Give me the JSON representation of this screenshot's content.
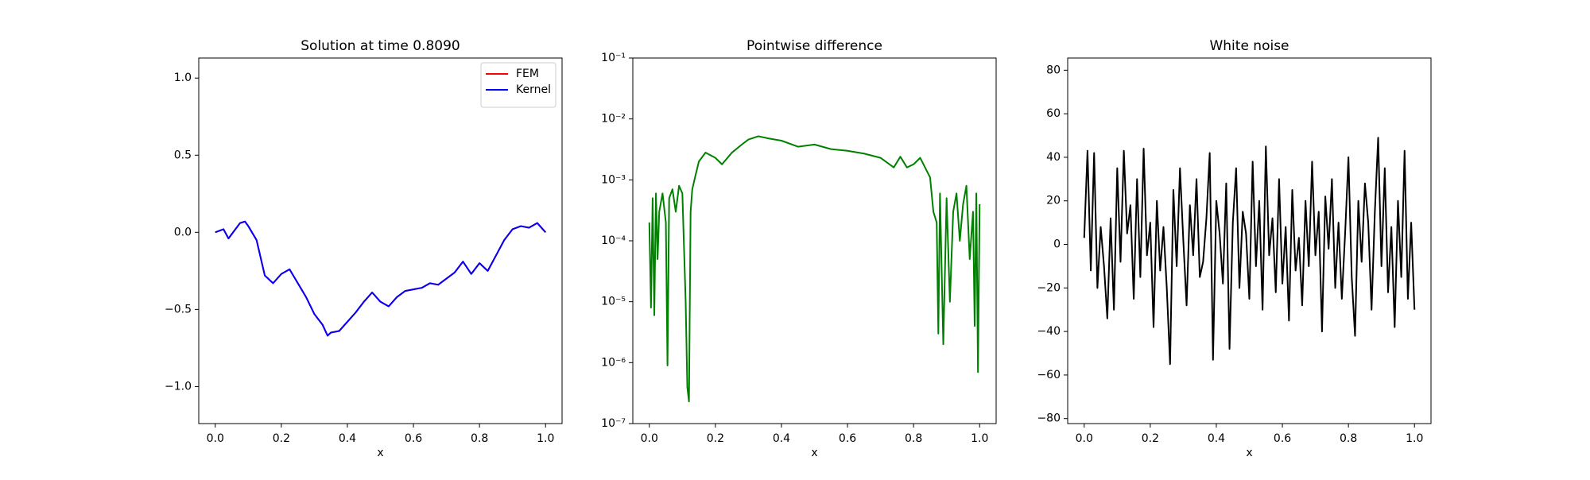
{
  "chart_data": [
    {
      "type": "line",
      "title": "Solution at time 0.8090",
      "xlabel": "x",
      "x": [
        0,
        0.025,
        0.04,
        0.075,
        0.09,
        0.1,
        0.125,
        0.15,
        0.175,
        0.2,
        0.225,
        0.25,
        0.275,
        0.3,
        0.325,
        0.34,
        0.35,
        0.375,
        0.4,
        0.425,
        0.45,
        0.475,
        0.5,
        0.525,
        0.55,
        0.575,
        0.6,
        0.625,
        0.65,
        0.675,
        0.7,
        0.725,
        0.75,
        0.775,
        0.8,
        0.825,
        0.85,
        0.875,
        0.9,
        0.925,
        0.95,
        0.975,
        1.0
      ],
      "series": [
        {
          "name": "FEM",
          "color": "#ff0000",
          "values": [
            0,
            0.02,
            -0.04,
            0.06,
            0.07,
            0.04,
            -0.05,
            -0.28,
            -0.33,
            -0.27,
            -0.24,
            -0.33,
            -0.42,
            -0.53,
            -0.6,
            -0.67,
            -0.65,
            -0.64,
            -0.58,
            -0.52,
            -0.45,
            -0.39,
            -0.45,
            -0.48,
            -0.42,
            -0.38,
            -0.37,
            -0.36,
            -0.33,
            -0.34,
            -0.3,
            -0.26,
            -0.19,
            -0.27,
            -0.2,
            -0.25,
            -0.15,
            -0.05,
            0.02,
            0.04,
            0.03,
            0.06,
            0
          ]
        },
        {
          "name": "Kernel",
          "color": "#0000ff",
          "values": [
            0,
            0.02,
            -0.04,
            0.06,
            0.07,
            0.04,
            -0.05,
            -0.28,
            -0.33,
            -0.27,
            -0.24,
            -0.33,
            -0.42,
            -0.53,
            -0.6,
            -0.67,
            -0.65,
            -0.64,
            -0.58,
            -0.52,
            -0.45,
            -0.39,
            -0.45,
            -0.48,
            -0.42,
            -0.38,
            -0.37,
            -0.36,
            -0.33,
            -0.34,
            -0.3,
            -0.26,
            -0.19,
            -0.27,
            -0.2,
            -0.25,
            -0.15,
            -0.05,
            0.02,
            0.04,
            0.03,
            0.06,
            0
          ]
        }
      ],
      "xlim": [
        -0.05,
        1.05
      ],
      "xticks": [
        {
          "value": 0,
          "label": "0.0"
        },
        0.2,
        0.4,
        0.6,
        0.8,
        {
          "value": 1,
          "label": "1.0"
        }
      ],
      "ylim": [
        -1.24,
        1.13
      ],
      "yticks": [
        {
          "value": -1,
          "label": "−1.0"
        },
        {
          "value": -0.5,
          "label": "−0.5"
        },
        {
          "value": 0,
          "label": "0.0"
        },
        0.5,
        {
          "value": 1,
          "label": "1.0"
        }
      ],
      "legend": "upper right"
    },
    {
      "type": "line",
      "title": "Pointwise difference",
      "xlabel": "x",
      "yscale": "log",
      "x": [
        0,
        0.005,
        0.01,
        0.015,
        0.02,
        0.025,
        0.03,
        0.04,
        0.05,
        0.055,
        0.06,
        0.07,
        0.08,
        0.09,
        0.1,
        0.11,
        0.115,
        0.12,
        0.125,
        0.13,
        0.14,
        0.15,
        0.17,
        0.2,
        0.22,
        0.25,
        0.28,
        0.3,
        0.33,
        0.36,
        0.4,
        0.45,
        0.5,
        0.55,
        0.6,
        0.65,
        0.7,
        0.74,
        0.76,
        0.78,
        0.8,
        0.82,
        0.85,
        0.86,
        0.87,
        0.875,
        0.88,
        0.89,
        0.9,
        0.91,
        0.92,
        0.93,
        0.94,
        0.95,
        0.96,
        0.97,
        0.98,
        0.985,
        0.99,
        0.995,
        1.0
      ],
      "series": [
        {
          "color": "#008000",
          "values": [
            0.0002,
            8e-06,
            0.0005,
            6e-06,
            0.0006,
            5e-05,
            0.0003,
            0.0006,
            0.0002,
            9e-07,
            0.0005,
            0.0007,
            0.0003,
            0.0008,
            0.0006,
            1e-05,
            4e-07,
            2.3e-07,
            0.0003,
            0.0007,
            0.0012,
            0.002,
            0.0028,
            0.0023,
            0.0018,
            0.0028,
            0.0038,
            0.0046,
            0.0052,
            0.0048,
            0.0044,
            0.0035,
            0.0038,
            0.0032,
            0.003,
            0.0027,
            0.0023,
            0.0016,
            0.0024,
            0.0016,
            0.0018,
            0.0023,
            0.0011,
            0.0003,
            0.0002,
            3e-06,
            0.0006,
            2e-06,
            0.0005,
            1e-05,
            0.0003,
            0.0006,
            0.0001,
            0.0004,
            0.0008,
            5e-05,
            0.0003,
            4e-06,
            0.0006,
            7e-07,
            0.0004
          ]
        }
      ],
      "xlim": [
        -0.05,
        1.05
      ],
      "xticks": [
        {
          "value": 0,
          "label": "0.0"
        },
        0.2,
        0.4,
        0.6,
        0.8,
        {
          "value": 1,
          "label": "1.0"
        }
      ],
      "ylim": [
        1e-07,
        0.1
      ],
      "yticks": [
        {
          "value": 1e-07,
          "label": "10⁻⁷"
        },
        {
          "value": 1e-06,
          "label": "10⁻⁶"
        },
        {
          "value": 1e-05,
          "label": "10⁻⁵"
        },
        {
          "value": 0.0001,
          "label": "10⁻⁴"
        },
        {
          "value": 0.001,
          "label": "10⁻³"
        },
        {
          "value": 0.01,
          "label": "10⁻²"
        },
        {
          "value": 0.1,
          "label": "10⁻¹"
        }
      ]
    },
    {
      "type": "line",
      "title": "White noise",
      "xlabel": "x",
      "x": [
        0,
        0.01,
        0.02,
        0.03,
        0.04,
        0.05,
        0.06,
        0.07,
        0.08,
        0.09,
        0.1,
        0.11,
        0.12,
        0.13,
        0.14,
        0.15,
        0.16,
        0.17,
        0.18,
        0.19,
        0.2,
        0.21,
        0.22,
        0.23,
        0.24,
        0.25,
        0.26,
        0.27,
        0.28,
        0.29,
        0.3,
        0.31,
        0.32,
        0.33,
        0.34,
        0.35,
        0.36,
        0.37,
        0.38,
        0.39,
        0.4,
        0.41,
        0.42,
        0.43,
        0.44,
        0.45,
        0.46,
        0.47,
        0.48,
        0.49,
        0.5,
        0.51,
        0.52,
        0.53,
        0.54,
        0.55,
        0.56,
        0.57,
        0.58,
        0.59,
        0.6,
        0.61,
        0.62,
        0.63,
        0.64,
        0.65,
        0.66,
        0.67,
        0.68,
        0.69,
        0.7,
        0.71,
        0.72,
        0.73,
        0.74,
        0.75,
        0.76,
        0.77,
        0.78,
        0.79,
        0.8,
        0.81,
        0.82,
        0.83,
        0.84,
        0.85,
        0.86,
        0.87,
        0.88,
        0.89,
        0.9,
        0.91,
        0.92,
        0.93,
        0.94,
        0.95,
        0.96,
        0.97,
        0.98,
        0.99,
        1.0
      ],
      "series": [
        {
          "color": "#000000",
          "values": [
            3,
            43,
            -12,
            42,
            -20,
            8,
            -10,
            -34,
            12,
            -30,
            35,
            -8,
            43,
            5,
            18,
            -25,
            30,
            -15,
            44,
            -5,
            10,
            -38,
            20,
            -12,
            8,
            -20,
            -55,
            25,
            -10,
            35,
            2,
            -28,
            18,
            -5,
            30,
            -15,
            -8,
            12,
            42,
            -53,
            20,
            5,
            -18,
            28,
            -48,
            10,
            35,
            -20,
            15,
            5,
            -25,
            38,
            -10,
            20,
            -30,
            45,
            -5,
            12,
            -22,
            30,
            -18,
            8,
            -35,
            25,
            -12,
            3,
            -28,
            20,
            -10,
            38,
            -5,
            15,
            -40,
            22,
            -2,
            30,
            -20,
            10,
            -25,
            5,
            40,
            -15,
            -42,
            20,
            -8,
            28,
            10,
            -30,
            15,
            49,
            -10,
            35,
            -22,
            8,
            -38,
            20,
            -15,
            43,
            -25,
            10,
            -30
          ]
        }
      ],
      "xlim": [
        -0.05,
        1.05
      ],
      "xticks": [
        {
          "value": 0,
          "label": "0.0"
        },
        0.2,
        0.4,
        0.6,
        0.8,
        {
          "value": 1,
          "label": "1.0"
        }
      ],
      "ylim": [
        -82.3,
        85.6
      ],
      "yticks": [
        {
          "value": -80,
          "label": "−80"
        },
        {
          "value": -60,
          "label": "−60"
        },
        {
          "value": -40,
          "label": "−40"
        },
        {
          "value": -20,
          "label": "−20"
        },
        0,
        20,
        40,
        60,
        80
      ]
    }
  ]
}
